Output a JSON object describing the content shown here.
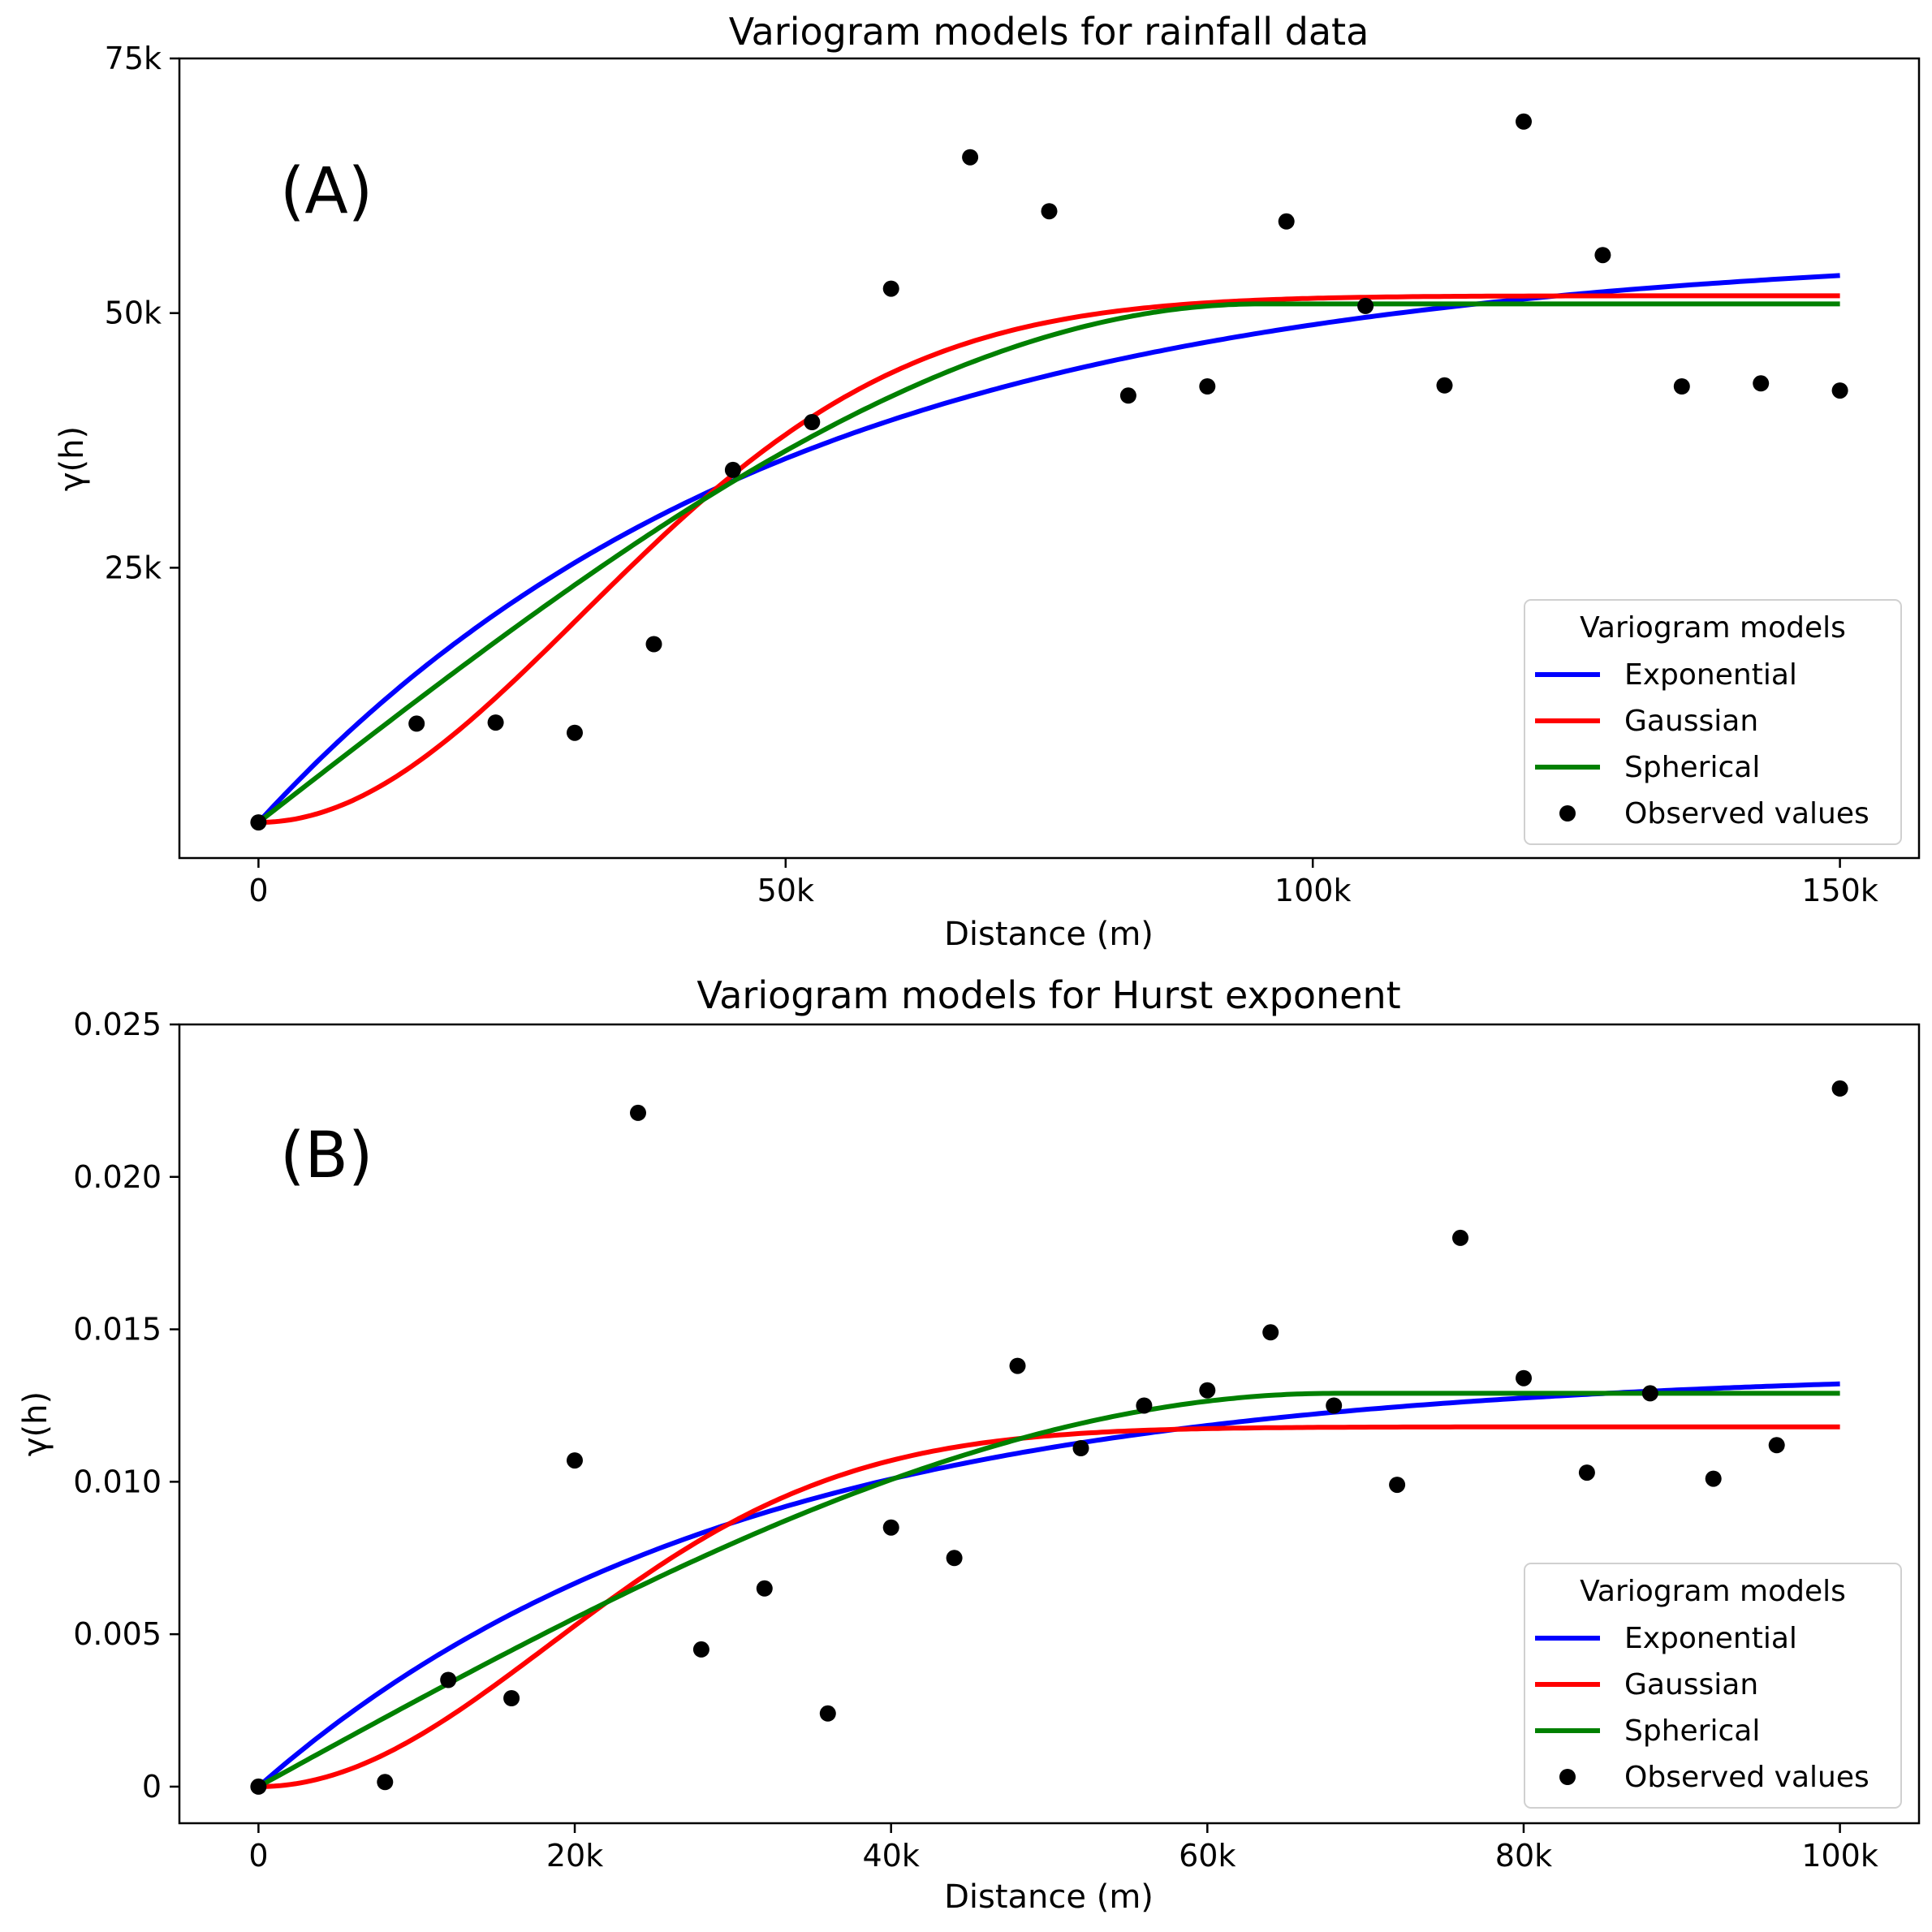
{
  "chart_data": [
    {
      "type": "line",
      "title": "Variogram models for rainfall data",
      "panel_tag": "(A)",
      "xlabel": "Distance (m)",
      "ylabel": "γ(h)",
      "xlim": [
        -7500,
        157500
      ],
      "ylim": [
        -3500,
        75000
      ],
      "xticks": [
        0,
        50000,
        100000,
        150000
      ],
      "xtick_labels": [
        "0",
        "50k",
        "100k",
        "150k"
      ],
      "yticks": [
        25000,
        50000,
        75000
      ],
      "ytick_labels": [
        "25k",
        "50k",
        "75k"
      ],
      "legend": {
        "title": "Variogram models",
        "placement": "lower-right",
        "entries": [
          "Exponential",
          "Gaussian",
          "Spherical",
          "Observed values"
        ]
      },
      "series": [
        {
          "name": "Exponential",
          "kind": "line",
          "color": "#0000ff",
          "model": "exponential",
          "nugget": 0,
          "sill": 56500,
          "range": 150000,
          "x_max": 150000
        },
        {
          "name": "Gaussian",
          "kind": "line",
          "color": "#ff0000",
          "model": "gaussian",
          "nugget": 0,
          "sill": 51700,
          "range": 75000,
          "x_max": 150000
        },
        {
          "name": "Spherical",
          "kind": "line",
          "color": "#008000",
          "model": "spherical",
          "nugget": 0,
          "sill": 50900,
          "range": 95000,
          "x_max": 150000
        },
        {
          "name": "Observed values",
          "kind": "scatter",
          "color": "#000000",
          "x": [
            0,
            15000,
            22500,
            30000,
            37500,
            45000,
            52500,
            60000,
            67500,
            75000,
            82500,
            90000,
            97500,
            105000,
            112500,
            120000,
            127500,
            135000,
            142500,
            150000
          ],
          "y": [
            0,
            9700,
            9800,
            8800,
            17500,
            34600,
            39300,
            52400,
            65300,
            60000,
            41900,
            42800,
            59000,
            50700,
            42900,
            68800,
            55700,
            42800,
            43100,
            42400
          ]
        }
      ]
    },
    {
      "type": "line",
      "title": "Variogram models for Hurst exponent",
      "panel_tag": "(B)",
      "xlabel": "Distance (m)",
      "ylabel": "γ(h)",
      "xlim": [
        -5000,
        105000
      ],
      "ylim": [
        -0.0012,
        0.025
      ],
      "xticks": [
        0,
        20000,
        40000,
        60000,
        80000,
        100000
      ],
      "xtick_labels": [
        "0",
        "20k",
        "40k",
        "60k",
        "80k",
        "100k"
      ],
      "yticks": [
        0,
        0.005,
        0.01,
        0.015,
        0.02,
        0.025
      ],
      "ytick_labels": [
        "0",
        "0.005",
        "0.010",
        "0.015",
        "0.020",
        "0.025"
      ],
      "legend": {
        "title": "Variogram models",
        "placement": "lower-right",
        "entries": [
          "Exponential",
          "Gaussian",
          "Spherical",
          "Observed values"
        ]
      },
      "series": [
        {
          "name": "Exponential",
          "kind": "line",
          "color": "#0000ff",
          "model": "exponential",
          "nugget": 0,
          "sill": 0.0137,
          "range": 90000,
          "x_max": 100000
        },
        {
          "name": "Gaussian",
          "kind": "line",
          "color": "#ff0000",
          "model": "gaussian",
          "nugget": 0,
          "sill": 0.0118,
          "range": 45000,
          "x_max": 100000
        },
        {
          "name": "Spherical",
          "kind": "line",
          "color": "#008000",
          "model": "spherical",
          "nugget": 0,
          "sill": 0.0129,
          "range": 68000,
          "x_max": 100000
        },
        {
          "name": "Observed values",
          "kind": "scatter",
          "color": "#000000",
          "x": [
            0,
            8000,
            12000,
            16000,
            20000,
            24000,
            28000,
            32000,
            36000,
            40000,
            44000,
            48000,
            52000,
            56000,
            60000,
            64000,
            68000,
            72000,
            76000,
            80000,
            84000,
            88000,
            92000,
            96000,
            100000
          ],
          "y": [
            0,
            0.00015,
            0.0035,
            0.0029,
            0.0107,
            0.0221,
            0.0045,
            0.0065,
            0.0024,
            0.0085,
            0.0075,
            0.0138,
            0.0111,
            0.0125,
            0.013,
            0.0149,
            0.0125,
            0.0099,
            0.018,
            0.0134,
            0.0103,
            0.0129,
            0.0101,
            0.0112,
            0.0229
          ]
        }
      ]
    }
  ]
}
